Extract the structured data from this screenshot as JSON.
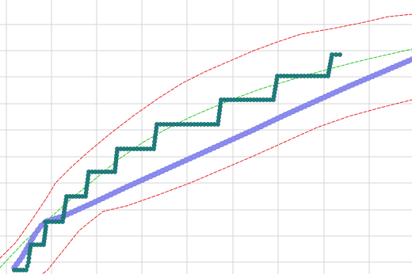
{
  "chart_data": {
    "type": "line",
    "xlim": [
      0,
      520
    ],
    "ylim": [
      0,
      346
    ],
    "grid": true,
    "grid_x_ticks": [
      8,
      65,
      122,
      179,
      236,
      294,
      351,
      409,
      466
    ],
    "grid_y_ticks": [
      15,
      48,
      81,
      115,
      148,
      182,
      215,
      249,
      282,
      315
    ],
    "series": [
      {
        "role": "step",
        "color": "#1e8080",
        "line_width": 2,
        "marker": "circle",
        "points": [
          [
            18,
            5
          ],
          [
            33,
            5
          ],
          [
            36,
            15
          ],
          [
            37,
            25
          ],
          [
            39,
            37
          ],
          [
            55,
            37
          ],
          [
            58,
            60
          ],
          [
            57,
            66
          ],
          [
            79,
            66
          ],
          [
            84,
            98
          ],
          [
            108,
            98
          ],
          [
            112,
            129
          ],
          [
            145,
            129
          ],
          [
            148,
            158
          ],
          [
            194,
            158
          ],
          [
            198,
            189
          ],
          [
            275,
            189
          ],
          [
            279,
            220
          ],
          [
            345,
            220
          ],
          [
            350,
            250
          ],
          [
            414,
            250
          ],
          [
            419,
            277
          ],
          [
            429,
            277
          ]
        ]
      },
      {
        "role": "linear",
        "color": "#8c8cf0",
        "line_width": 6,
        "marker": "circle",
        "points": [
          [
            18,
            8
          ],
          [
            28,
            22
          ],
          [
            36,
            36
          ],
          [
            44,
            50
          ],
          [
            52,
            61
          ],
          [
            60,
            67
          ],
          [
            80,
            73
          ],
          [
            120,
            91
          ],
          [
            160,
            110
          ],
          [
            200,
            128
          ],
          [
            240,
            146
          ],
          [
            280,
            164
          ],
          [
            320,
            182
          ],
          [
            360,
            201
          ],
          [
            400,
            219
          ],
          [
            440,
            237
          ],
          [
            480,
            254
          ],
          [
            520,
            271
          ]
        ]
      },
      {
        "role": "trend",
        "color": "#28c828",
        "line_width": 1,
        "dashed": true,
        "points": [
          [
            0,
            8
          ],
          [
            30,
            40
          ],
          [
            60,
            68
          ],
          [
            90,
            95
          ],
          [
            120,
            120
          ],
          [
            150,
            145
          ],
          [
            180,
            166
          ],
          [
            210,
            183
          ],
          [
            240,
            198
          ],
          [
            270,
            211
          ],
          [
            300,
            223
          ],
          [
            330,
            234
          ],
          [
            360,
            243
          ],
          [
            390,
            252
          ],
          [
            420,
            260
          ],
          [
            450,
            268
          ],
          [
            480,
            275
          ],
          [
            520,
            284
          ]
        ]
      },
      {
        "role": "upper-band",
        "color": "#e62828",
        "line_width": 1,
        "dashed": true,
        "points": [
          [
            0,
            20
          ],
          [
            20,
            40
          ],
          [
            40,
            68
          ],
          [
            60,
            98
          ],
          [
            70,
            115
          ],
          [
            90,
            135
          ],
          [
            110,
            153
          ],
          [
            140,
            178
          ],
          [
            170,
            201
          ],
          [
            200,
            222
          ],
          [
            230,
            241
          ],
          [
            260,
            256
          ],
          [
            290,
            269
          ],
          [
            320,
            282
          ],
          [
            350,
            293
          ],
          [
            380,
            303
          ],
          [
            420,
            310
          ],
          [
            460,
            318
          ],
          [
            490,
            325
          ],
          [
            520,
            328
          ]
        ]
      },
      {
        "role": "lower-band",
        "color": "#e62828",
        "line_width": 1,
        "dashed": true,
        "points": [
          [
            40,
            -10
          ],
          [
            60,
            5
          ],
          [
            80,
            30
          ],
          [
            100,
            55
          ],
          [
            130,
            79
          ],
          [
            160,
            86
          ],
          [
            200,
            100
          ],
          [
            240,
            115
          ],
          [
            280,
            132
          ],
          [
            320,
            149
          ],
          [
            360,
            167
          ],
          [
            400,
            185
          ],
          [
            440,
            199
          ],
          [
            480,
            210
          ],
          [
            520,
            220
          ]
        ]
      }
    ]
  }
}
